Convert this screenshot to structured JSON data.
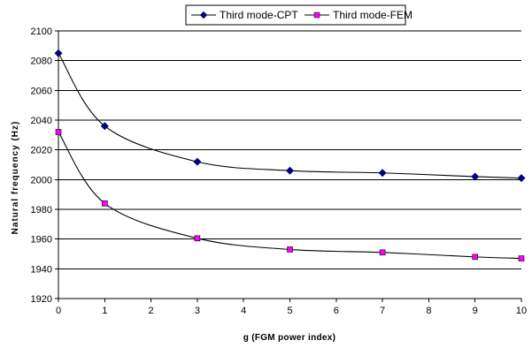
{
  "chart_data": {
    "type": "line",
    "title": "",
    "xlabel": "g (FGM power index)",
    "ylabel": "Natural frequency (Hz)",
    "x": [
      0,
      1,
      3,
      5,
      7,
      9,
      10
    ],
    "xlim": [
      0,
      10
    ],
    "xticks": [
      0,
      1,
      2,
      3,
      4,
      5,
      6,
      7,
      8,
      9,
      10
    ],
    "ylim": [
      1920,
      2100
    ],
    "yticks": [
      1920,
      1940,
      1960,
      1980,
      2000,
      2020,
      2040,
      2060,
      2080,
      2100
    ],
    "grid": "horizontal",
    "legend_position": "top",
    "series": [
      {
        "name": "Third mode-CPT",
        "marker": "diamond",
        "color": "#000080",
        "values": [
          2085,
          2036,
          2012,
          2006,
          2004.5,
          2002,
          2001
        ]
      },
      {
        "name": "Third mode-FEM",
        "marker": "square",
        "color": "#ff00ff",
        "values": [
          2032,
          1984,
          1960.5,
          1953,
          1951,
          1948,
          1947
        ]
      }
    ]
  }
}
